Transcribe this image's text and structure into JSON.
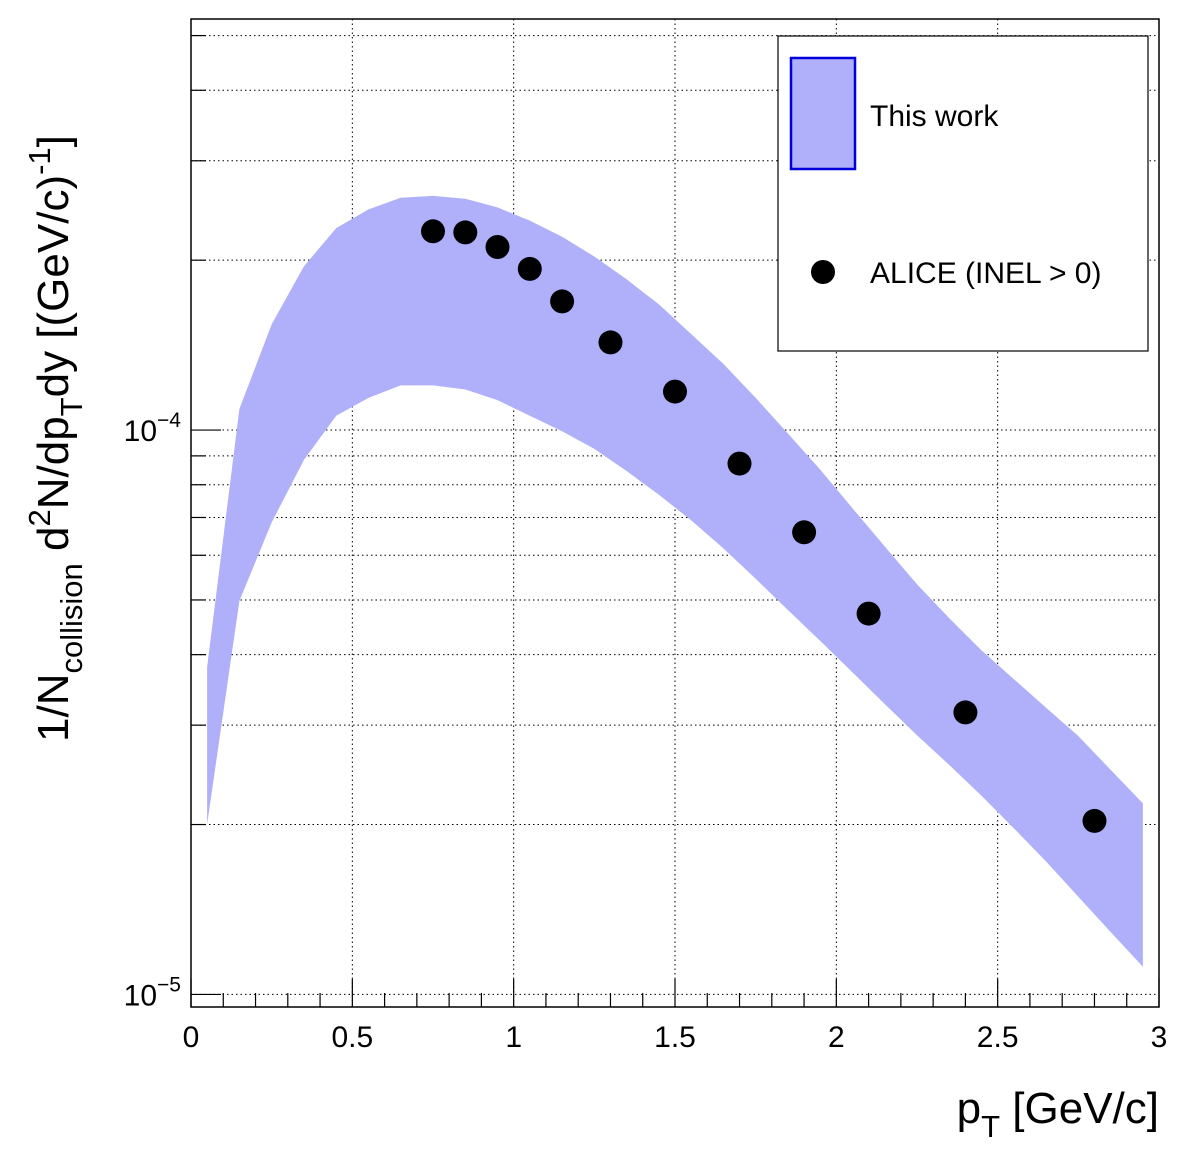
{
  "chart_data": {
    "type": "scatter",
    "x_scale": "linear",
    "y_scale": "log",
    "xlim": [
      0,
      3
    ],
    "ylim": [
      9.5e-06,
      0.000535
    ],
    "x_ticks": [
      "0",
      "0.5",
      "1",
      "1.5",
      "2",
      "2.5",
      "3"
    ],
    "x_tick_values": [
      0,
      0.5,
      1,
      1.5,
      2,
      2.5,
      3
    ],
    "y_tick_labels": [
      {
        "base": "10",
        "exp": "−5",
        "value": 1e-05
      },
      {
        "base": "10",
        "exp": "−4",
        "value": 0.0001
      }
    ],
    "xlabel": {
      "main": "p",
      "sub": "T",
      "rest": " [GeV/c]"
    },
    "ylabel": {
      "p1": "1/N",
      "s1": "collision",
      "p2": " d",
      "e1": "2",
      "p3": "N/dp",
      "s2": "T",
      "p4": "dy [(GeV/c)",
      "e2": "-1",
      "p5": "]"
    },
    "grid": true,
    "legend_position": "top-right",
    "series": [
      {
        "name": "This work",
        "kind": "band",
        "fill": "#b0b0fa",
        "stroke": "#0000dd",
        "x": [
          0.05,
          0.15,
          0.25,
          0.35,
          0.45,
          0.55,
          0.65,
          0.75,
          0.85,
          0.95,
          1.05,
          1.15,
          1.25,
          1.35,
          1.45,
          1.55,
          1.65,
          1.75,
          1.85,
          1.95,
          2.05,
          2.15,
          2.25,
          2.35,
          2.45,
          2.55,
          2.65,
          2.75,
          2.85,
          2.95
        ],
        "upper": [
          3.8e-05,
          0.000109,
          0.000154,
          0.000195,
          0.000228,
          0.000246,
          0.000258,
          0.00026,
          0.000257,
          0.000248,
          0.000235,
          0.00022,
          0.000203,
          0.000185,
          0.000167,
          0.000148,
          0.000131,
          0.000114,
          9.86e-05,
          8.51e-05,
          7.27e-05,
          6.22e-05,
          5.33e-05,
          4.64e-05,
          4.07e-05,
          3.62e-05,
          3.22e-05,
          2.87e-05,
          2.5e-05,
          2.18e-05
        ],
        "lower": [
          2e-05,
          4.98e-05,
          6.86e-05,
          8.85e-05,
          0.000106,
          0.000114,
          0.00012,
          0.00012,
          0.000118,
          0.000113,
          0.000106,
          9.95e-05,
          9.26e-05,
          8.46e-05,
          7.68e-05,
          6.92e-05,
          6.17e-05,
          5.45e-05,
          4.8e-05,
          4.23e-05,
          3.72e-05,
          3.27e-05,
          2.88e-05,
          2.55e-05,
          2.25e-05,
          1.97e-05,
          1.72e-05,
          1.49e-05,
          1.29e-05,
          1.12e-05
        ]
      },
      {
        "name": "ALICE (INEL > 0)",
        "kind": "points",
        "color": "#000000",
        "x": [
          0.75,
          0.85,
          0.95,
          1.05,
          1.15,
          1.3,
          1.5,
          1.7,
          1.9,
          2.1,
          2.4,
          2.8
        ],
        "y": [
          0.000225,
          0.000224,
          0.000211,
          0.000193,
          0.000169,
          0.000143,
          0.000117,
          8.72e-05,
          6.59e-05,
          4.73e-05,
          3.16e-05,
          2.03e-05
        ]
      }
    ]
  }
}
